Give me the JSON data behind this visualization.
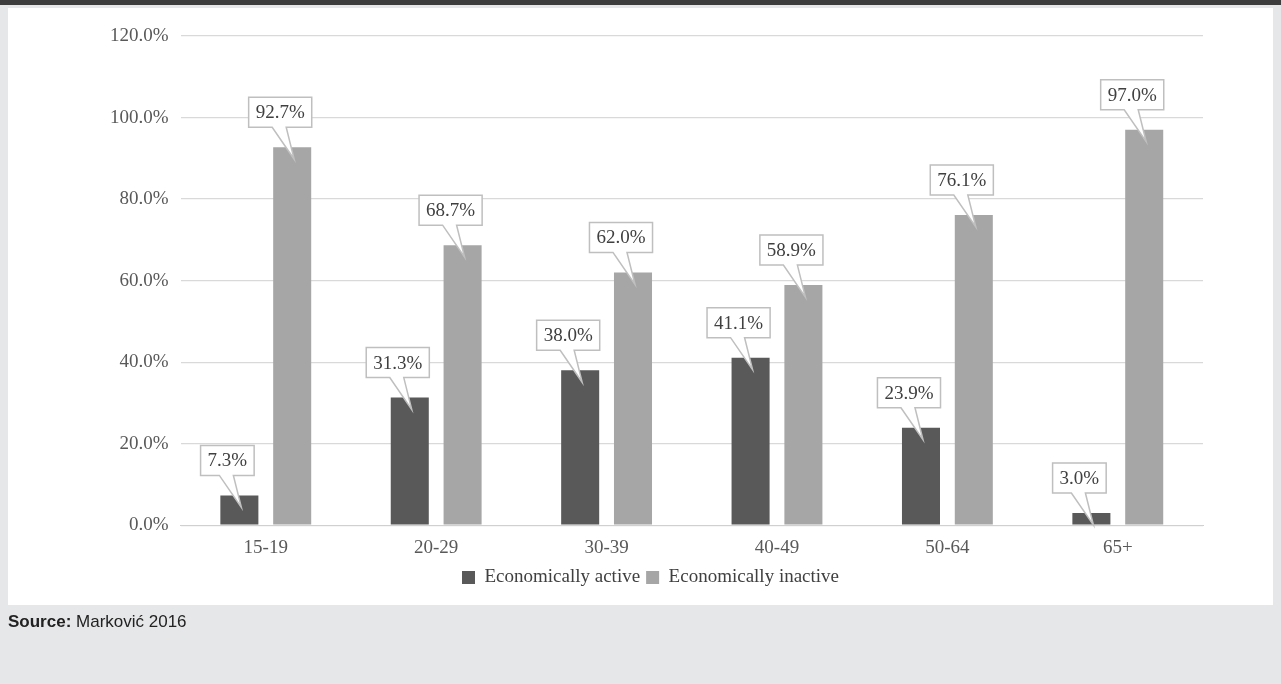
{
  "chart_data": {
    "type": "bar",
    "categories": [
      "15-19",
      "20-29",
      "30-39",
      "40-49",
      "50-64",
      "65+"
    ],
    "series": [
      {
        "name": "Economically active",
        "color": "#595959",
        "values": [
          7.3,
          31.3,
          38.0,
          41.1,
          23.9,
          3.0
        ],
        "value_labels": [
          "7.3%",
          "31.3%",
          "38.0%",
          "41.1%",
          "23.9%",
          "3.0%"
        ]
      },
      {
        "name": "Economically inactive",
        "color": "#a6a6a6",
        "values": [
          92.7,
          68.7,
          62.0,
          58.9,
          76.1,
          97.0
        ],
        "value_labels": [
          "92.7%",
          "68.7%",
          "62.0%",
          "58.9%",
          "76.1%",
          "97.0%"
        ]
      }
    ],
    "ylim": [
      0,
      120
    ],
    "yticks": [
      {
        "value": 0,
        "label": "0.0%"
      },
      {
        "value": 20,
        "label": "20.0%"
      },
      {
        "value": 40,
        "label": "40.0%"
      },
      {
        "value": 60,
        "label": "60.0%"
      },
      {
        "value": 80,
        "label": "80.0%"
      },
      {
        "value": 100,
        "label": "100.0%"
      },
      {
        "value": 120,
        "label": "120.0%"
      }
    ],
    "grid": "y",
    "legend": "bottom",
    "annotations": [
      "Source: Marković 2016"
    ]
  }
}
